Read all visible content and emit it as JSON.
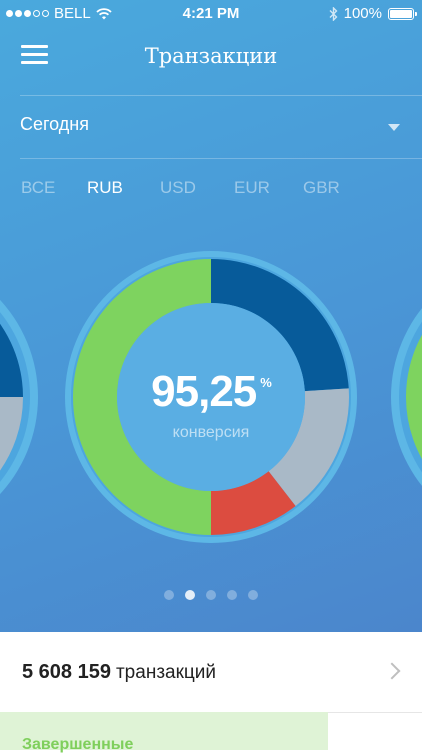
{
  "status_bar": {
    "carrier": "BELL",
    "time": "4:21 PM",
    "battery": "100%",
    "signal_dots_filled": 3,
    "signal_dots_total": 5
  },
  "header": {
    "title": "Транзакции"
  },
  "period": {
    "selected": "Сегодня"
  },
  "currency_tabs": [
    {
      "label": "ВСЕ",
      "active": false
    },
    {
      "label": "RUB",
      "active": true
    },
    {
      "label": "USD",
      "active": false
    },
    {
      "label": "EUR",
      "active": false
    },
    {
      "label": "GBR",
      "active": false
    }
  ],
  "chart_data": {
    "type": "pie",
    "center_value": "95,25",
    "center_unit": "%",
    "center_label": "конверсия",
    "segments": [
      {
        "color": "#7ed35f",
        "value": 50
      },
      {
        "color": "#075b9a",
        "value": 24
      },
      {
        "color": "#a9b9c7",
        "value": 15.5
      },
      {
        "color": "#dc4c40",
        "value": 10.5
      }
    ]
  },
  "pager": {
    "count": 5,
    "active_index": 1
  },
  "summary": {
    "count": "5 608 159",
    "unit": "транзакций"
  },
  "completed": {
    "label": "Завершенные"
  },
  "colors": {
    "background_top": "#4aa9dd",
    "background_bottom": "#4b86cc",
    "ring_outer": "#5db7e6",
    "ring_inner": "#5aaee3",
    "completed_bg": "#dff3d6",
    "completed_text": "#7fcf5c"
  },
  "icons": {
    "menu": "hamburger-icon",
    "wifi": "wifi-icon",
    "bluetooth": "bluetooth-icon",
    "battery": "battery-icon",
    "caret": "caret-down-icon",
    "chevron": "chevron-right-icon"
  }
}
